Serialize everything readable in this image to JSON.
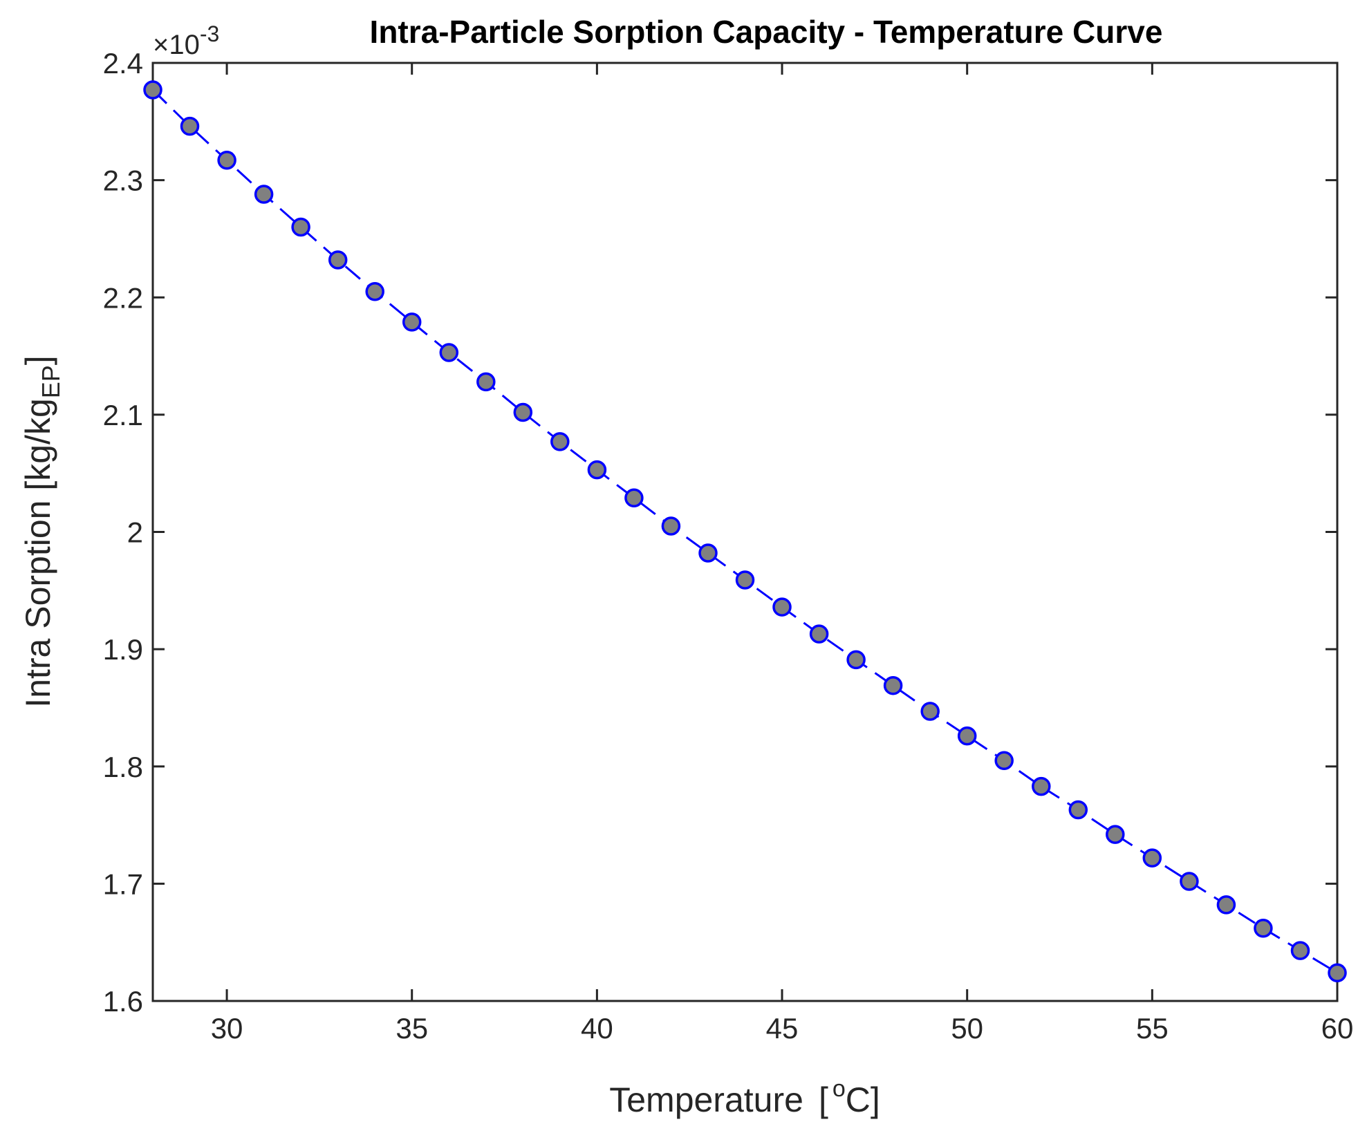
{
  "chart_data": {
    "type": "line",
    "title": "Intra-Particle Sorption Capacity - Temperature Curve",
    "xlabel": "Temperature",
    "xlabel_unit": "[ °C]",
    "xlabel_unit_parts": {
      "open": "[",
      "sup": "o",
      "unit": "C]"
    },
    "ylabel": "Intra Sorption [kg/kg",
    "ylabel_sub": "EP",
    "ylabel_close": "]",
    "y_exponent_prefix": "×10",
    "y_exponent_power": "-3",
    "xlim": [
      28,
      60
    ],
    "ylim": [
      1.6,
      2.4
    ],
    "xticks": [
      30,
      35,
      40,
      45,
      50,
      55,
      60
    ],
    "yticks": [
      1.6,
      1.7,
      1.8,
      1.9,
      2.0,
      2.1,
      2.2,
      2.3,
      2.4
    ],
    "ytick_labels": [
      "1.6",
      "1.7",
      "1.8",
      "1.9",
      "2",
      "2.1",
      "2.2",
      "2.3",
      "2.4"
    ],
    "y_scale_note": "values in units of 1e-3 kg/kg_EP",
    "grid": false,
    "series": [
      {
        "name": "Intra Sorption",
        "line_style": "dashed",
        "line_color": "#0000ff",
        "marker": "circle",
        "marker_face": "#808080",
        "marker_edge": "#0000ff",
        "x": [
          28,
          29,
          30,
          31,
          32,
          33,
          34,
          35,
          36,
          37,
          38,
          39,
          40,
          41,
          42,
          43,
          44,
          45,
          46,
          47,
          48,
          49,
          50,
          51,
          52,
          53,
          54,
          55,
          56,
          57,
          58,
          59,
          60
        ],
        "y": [
          2.377,
          2.346,
          2.317,
          2.288,
          2.26,
          2.232,
          2.205,
          2.179,
          2.153,
          2.128,
          2.102,
          2.077,
          2.053,
          2.029,
          2.005,
          1.982,
          1.959,
          1.936,
          1.913,
          1.891,
          1.869,
          1.847,
          1.826,
          1.805,
          1.783,
          1.763,
          1.742,
          1.722,
          1.702,
          1.682,
          1.662,
          1.643,
          1.624
        ]
      }
    ]
  }
}
